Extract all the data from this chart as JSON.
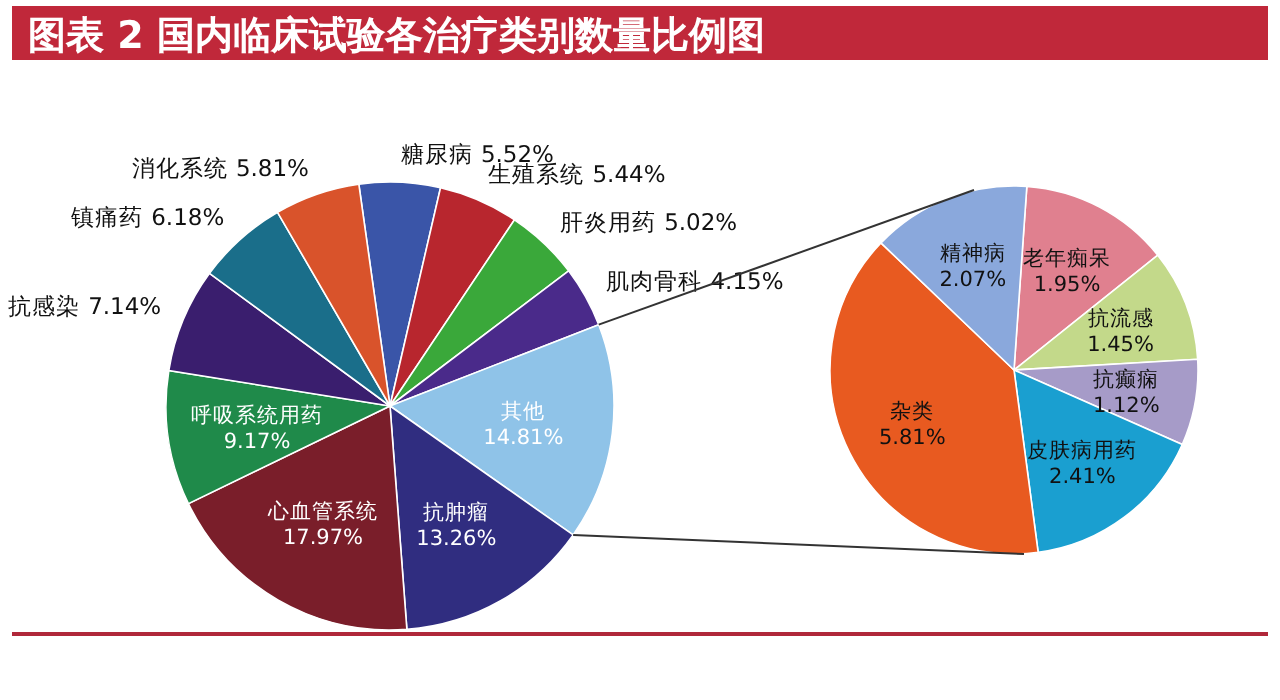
{
  "chart_data": [
    {
      "type": "pie",
      "title": "图表 2  国内临床试验各治疗类别数量比例图",
      "categories": [
        "糖尿病",
        "生殖系统",
        "肝炎用药",
        "肌肉骨科",
        "其他",
        "抗肿瘤",
        "心血管系统",
        "呼吸系统用药",
        "抗感染",
        "镇痛药",
        "消化系统"
      ],
      "values": [
        5.52,
        5.44,
        5.02,
        4.15,
        14.81,
        13.26,
        17.97,
        9.17,
        7.14,
        6.18,
        5.81
      ],
      "value_labels": [
        "5.52%",
        "5.44%",
        "5.02%",
        "4.15%",
        "14.81%",
        "13.26%",
        "17.97%",
        "9.17%",
        "7.14%",
        "6.18%",
        "5.81%"
      ],
      "colors": [
        "#3a55a8",
        "#b8262e",
        "#3aa83a",
        "#4a2a8a",
        "#8fc3e8",
        "#302d80",
        "#7a1e2a",
        "#1f8a4a",
        "#3a1e6e",
        "#1a6e8a",
        "#d9532b"
      ]
    },
    {
      "type": "pie",
      "categories": [
        "老年痴呆",
        "抗流感",
        "抗癫痫",
        "皮肤病用药",
        "杂类",
        "精神病"
      ],
      "values": [
        1.95,
        1.45,
        1.12,
        2.41,
        5.81,
        2.07
      ],
      "value_labels": [
        "1.95%",
        "1.45%",
        "1.12%",
        "2.41%",
        "5.81%",
        "2.07%"
      ],
      "colors": [
        "#e0808f",
        "#c3d98a",
        "#a69bc8",
        "#1a9fd0",
        "#e85a20",
        "#8aa8dc"
      ]
    }
  ]
}
